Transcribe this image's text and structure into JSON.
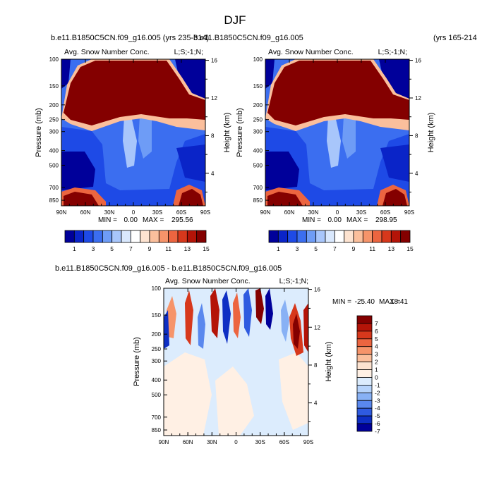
{
  "page": {
    "title": "DJF",
    "left_case": "b.e11.B1850C5CN.f09_g16.005 (yrs 235-314)",
    "right_case": "b.e11.B1850C5CN.f09_g16.005",
    "right_years": "(yrs 165-214",
    "diff_title": "b.e11.B1850C5CN.f09_g16.005 - b.e11.B1850C5CN.f09_g16.005"
  },
  "chart_data": [
    {
      "id": "panel-left",
      "type": "heatmap",
      "title": "Avg. Snow Number Conc.",
      "corner_label": "L;S;-1;N;",
      "ylabel": "Pressure (mb)",
      "ylabel_right": "Height (km)",
      "x_ticks": [
        "90N",
        "60N",
        "30N",
        "0",
        "30S",
        "60S",
        "90S"
      ],
      "y_ticks": [
        "100",
        "150",
        "200",
        "250",
        "300",
        "400",
        "500",
        "700",
        "850"
      ],
      "y_ticks_right": [
        "16",
        "12",
        "8",
        "4"
      ],
      "ylim": [
        100,
        925
      ],
      "stats": {
        "min_label": "MIN =",
        "min": "0.00",
        "max_label": "MAX =",
        "max": "295.56"
      },
      "colorbar_labels": [
        "1",
        "3",
        "5",
        "7",
        "9",
        "11",
        "13",
        "15"
      ]
    },
    {
      "id": "panel-right",
      "type": "heatmap",
      "title": "Avg. Snow Number Conc.",
      "corner_label": "L;S;-1;N;",
      "ylabel": "Pressure (mb)",
      "ylabel_right": "Height (km)",
      "x_ticks": [
        "90N",
        "60N",
        "30N",
        "0",
        "30S",
        "60S",
        "90S"
      ],
      "y_ticks": [
        "100",
        "150",
        "200",
        "250",
        "300",
        "400",
        "500",
        "700",
        "850"
      ],
      "y_ticks_right": [
        "16",
        "12",
        "8",
        "4"
      ],
      "ylim": [
        100,
        925
      ],
      "stats": {
        "min_label": "MIN =",
        "min": "0.00",
        "max_label": "MAX =",
        "max": "298.95"
      },
      "colorbar_labels": [
        "1",
        "3",
        "5",
        "7",
        "9",
        "11",
        "13",
        "15"
      ]
    },
    {
      "id": "panel-diff",
      "type": "heatmap",
      "title": "Avg. Snow Number Conc.",
      "corner_label": "L;S;-1;N;",
      "ylabel": "Pressure (mb)",
      "ylabel_right": "Height (km)",
      "x_ticks": [
        "90N",
        "60N",
        "30N",
        "0",
        "30S",
        "60S",
        "90S"
      ],
      "y_ticks": [
        "100",
        "150",
        "200",
        "250",
        "300",
        "400",
        "500",
        "700",
        "850"
      ],
      "y_ticks_right": [
        "16",
        "12",
        "8",
        "4"
      ],
      "ylim": [
        100,
        925
      ],
      "stats": {
        "min_label": "MIN =",
        "min": "-25.40",
        "max_label": "MAX =",
        "max": "18.41"
      },
      "colorbar_labels": [
        "7",
        "6",
        "5",
        "4",
        "3",
        "2",
        "1",
        "0",
        "-1",
        "-2",
        "-3",
        "-4",
        "-5",
        "-6",
        "-7"
      ]
    }
  ],
  "colors": {
    "seq_scale": [
      "#00009a",
      "#0a24c8",
      "#1e4ae6",
      "#3b6ef0",
      "#6e9cf6",
      "#a8c6fb",
      "#d9e8fd",
      "#ffffff",
      "#fde3d0",
      "#fbbf9c",
      "#f6946a",
      "#ec6540",
      "#d7381c",
      "#b41408",
      "#840000"
    ],
    "div_scale": [
      "#840000",
      "#b41408",
      "#d7381c",
      "#ec6540",
      "#f6946a",
      "#fbbf9c",
      "#fde3d0",
      "#fff0e4",
      "#dcecfd",
      "#b6d3fb",
      "#88b1f5",
      "#5a88ee",
      "#2f5be0",
      "#0e2fc4",
      "#00009a"
    ]
  }
}
